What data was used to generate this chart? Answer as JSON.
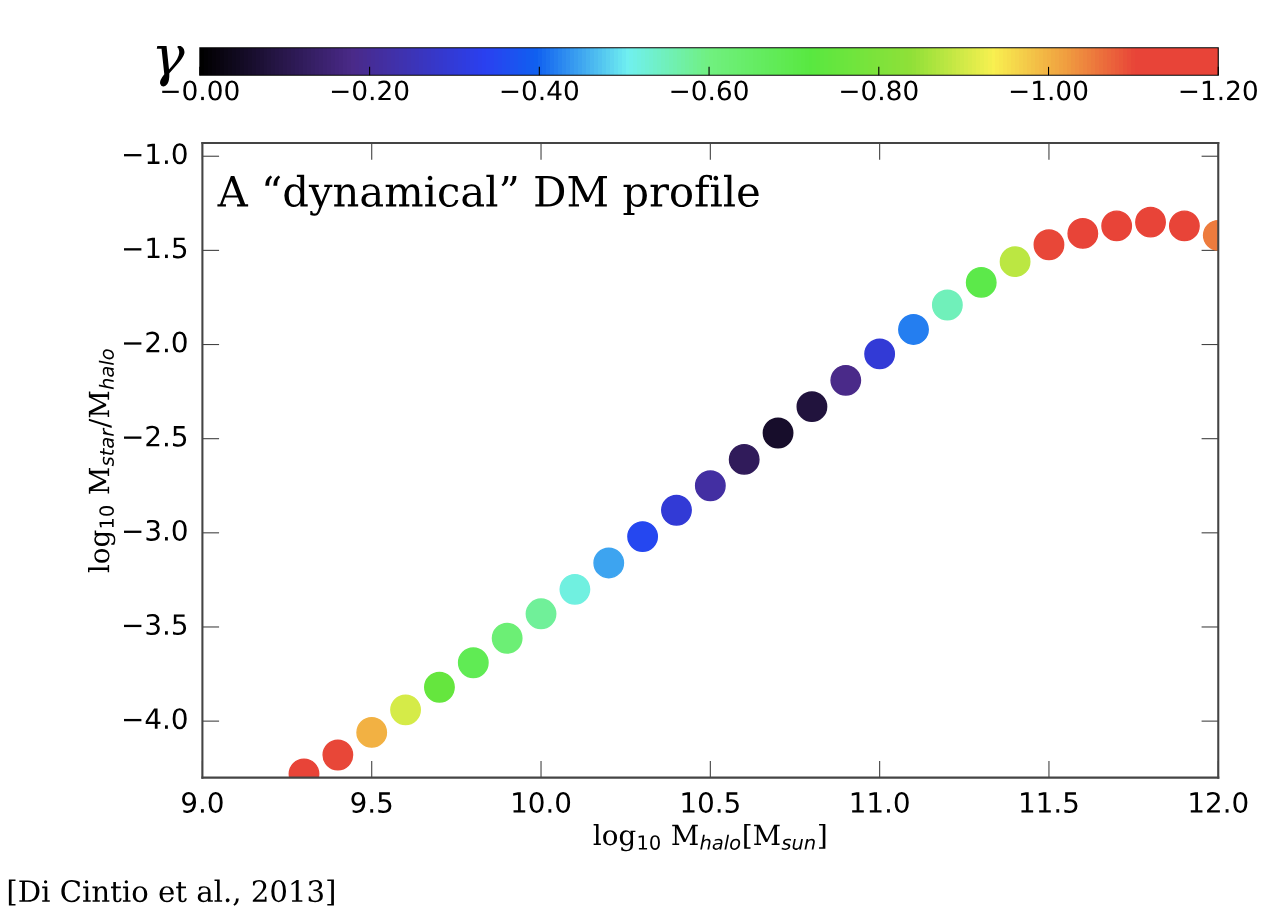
{
  "chart_data": {
    "type": "scatter",
    "xlabel": "log$_{10}$ M$_{halo}$[M$_{sun}$]",
    "ylabel": "log$_{10}$ M$_{star}$/M$_{halo}$",
    "clabel": "γ",
    "annotations": [
      "A “dynamical” DM profile",
      "[Di Cintio et al., 2013]"
    ],
    "x": [
      9.3,
      9.4,
      9.5,
      9.6,
      9.7,
      9.8,
      9.9,
      10.0,
      10.1,
      10.2,
      10.3,
      10.4,
      10.5,
      10.6,
      10.7,
      10.8,
      10.9,
      11.0,
      11.1,
      11.2,
      11.3,
      11.4,
      11.5,
      11.6,
      11.7,
      11.8,
      11.9,
      12.0
    ],
    "values": [
      -4.28,
      -4.18,
      -4.06,
      -3.94,
      -3.82,
      -3.69,
      -3.56,
      -3.43,
      -3.3,
      -3.16,
      -3.02,
      -2.88,
      -2.75,
      -2.61,
      -2.47,
      -2.33,
      -2.19,
      -2.05,
      -1.92,
      -1.79,
      -1.67,
      -1.56,
      -1.47,
      -1.41,
      -1.37,
      -1.35,
      -1.37,
      -1.42
    ],
    "cvalues": [
      -1.15,
      -1.1,
      -1.0,
      -0.9,
      -0.75,
      -0.68,
      -0.62,
      -0.58,
      -0.52,
      -0.45,
      -0.35,
      -0.3,
      -0.22,
      -0.12,
      -0.06,
      -0.08,
      -0.18,
      -0.3,
      -0.42,
      -0.55,
      -0.7,
      -0.88,
      -1.1,
      -1.15,
      -1.15,
      -1.15,
      -1.12,
      -1.05
    ],
    "clim": [
      0,
      -1.2
    ],
    "cticks": [
      {
        "value": 0,
        "label": "−0.00"
      },
      {
        "value": -0.2,
        "label": "−0.20"
      },
      {
        "value": -0.4,
        "label": "−0.40"
      },
      {
        "value": -0.6,
        "label": "−0.60"
      },
      {
        "value": -0.8,
        "label": "−0.80"
      },
      {
        "value": -1.0,
        "label": "−1.00"
      },
      {
        "value": -1.2,
        "label": "−1.20"
      }
    ],
    "xlim": [
      9.0,
      12.0
    ],
    "xticks": [
      {
        "value": 9.0,
        "label": "9.0"
      },
      {
        "value": 9.5,
        "label": "9.5"
      },
      {
        "value": 10.0,
        "label": "10.0"
      },
      {
        "value": 10.5,
        "label": "10.5"
      },
      {
        "value": 11.0,
        "label": "11.0"
      },
      {
        "value": 11.5,
        "label": "11.5"
      },
      {
        "value": 12.0,
        "label": "12.0"
      }
    ],
    "ylim": [
      -4.3,
      -0.93
    ],
    "yticks": [
      {
        "value": -1.0,
        "label": "−1.0"
      },
      {
        "value": -1.5,
        "label": "−1.5"
      },
      {
        "value": -2.0,
        "label": "−2.0"
      },
      {
        "value": -2.5,
        "label": "−2.5"
      },
      {
        "value": -3.0,
        "label": "−3.0"
      },
      {
        "value": -3.5,
        "label": "−3.5"
      },
      {
        "value": -4.0,
        "label": "−4.0"
      }
    ],
    "grid": false,
    "legend": false,
    "marker": "circle"
  }
}
